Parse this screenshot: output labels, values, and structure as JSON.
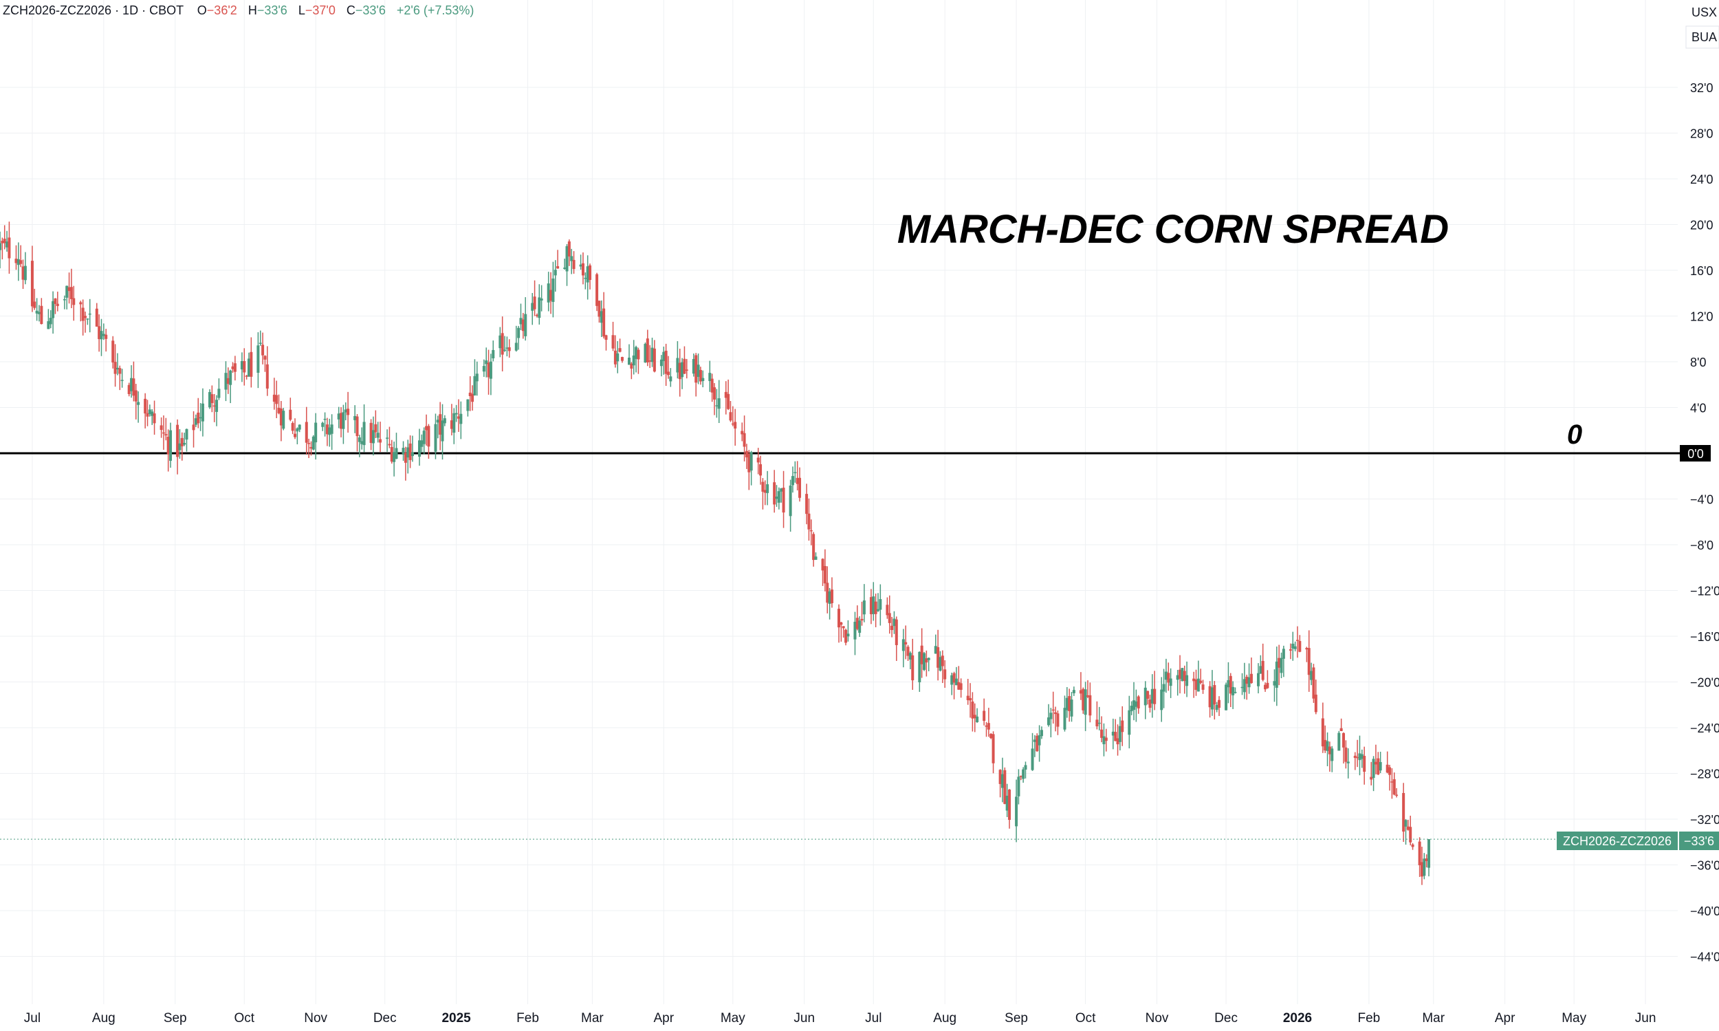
{
  "header": {
    "symbol": "ZCH2026-ZCZ2026 · 1D · CBOT",
    "open_label": "O",
    "open_value": "−36'2",
    "high_label": "H",
    "high_value": "−33'6",
    "low_label": "L",
    "low_value": "−37'0",
    "close_label": "C",
    "close_value": "−33'6",
    "change": "+2'6 (+7.53%)"
  },
  "scale": {
    "currency": "USX",
    "unit": "BUA"
  },
  "annotations": {
    "title": "MARCH-DEC CORN SPREAD",
    "zero_label": "0"
  },
  "price_tag": {
    "symbol": "ZCH2026-ZCZ2026",
    "value": "−33'6"
  },
  "zero_tag": "0'0",
  "colors": {
    "up": "#4a9a7f",
    "down": "#d9534f",
    "tag_bg": "#4a9a7f",
    "zero_line": "#000000"
  },
  "chart_data": {
    "type": "candlestick",
    "title": "MARCH-DEC CORN SPREAD",
    "x_range": [
      "2024-06-17",
      "2026-06-15"
    ],
    "ylim": [
      -46,
      35
    ],
    "y_ticks": [
      32,
      28,
      24,
      20,
      16,
      12,
      8,
      4,
      0,
      -4,
      -8,
      -12,
      -16,
      -20,
      -24,
      -28,
      -32,
      -36,
      -40,
      -44
    ],
    "y_tick_labels": [
      "32'0",
      "28'0",
      "24'0",
      "20'0",
      "16'0",
      "12'0",
      "8'0",
      "4'0",
      "0'0",
      "−4'0",
      "−8'0",
      "−12'0",
      "−16'0",
      "−20'0",
      "−24'0",
      "−28'0",
      "−32'0",
      "−36'0",
      "−40'0",
      "−44'0"
    ],
    "x_ticks": [
      {
        "date": "2024-07-01",
        "label": "Jul"
      },
      {
        "date": "2024-08-01",
        "label": "Aug"
      },
      {
        "date": "2024-09-01",
        "label": "Sep"
      },
      {
        "date": "2024-10-01",
        "label": "Oct"
      },
      {
        "date": "2024-11-01",
        "label": "Nov"
      },
      {
        "date": "2024-12-01",
        "label": "Dec"
      },
      {
        "date": "2025-01-01",
        "label": "2025",
        "bold": true
      },
      {
        "date": "2025-02-01",
        "label": "Feb"
      },
      {
        "date": "2025-03-01",
        "label": "Mar"
      },
      {
        "date": "2025-04-01",
        "label": "Apr"
      },
      {
        "date": "2025-05-01",
        "label": "May"
      },
      {
        "date": "2025-06-01",
        "label": "Jun"
      },
      {
        "date": "2025-07-01",
        "label": "Jul"
      },
      {
        "date": "2025-08-01",
        "label": "Aug"
      },
      {
        "date": "2025-09-01",
        "label": "Sep"
      },
      {
        "date": "2025-10-01",
        "label": "Oct"
      },
      {
        "date": "2025-11-01",
        "label": "Nov"
      },
      {
        "date": "2025-12-01",
        "label": "Dec"
      },
      {
        "date": "2026-01-01",
        "label": "2026",
        "bold": true
      },
      {
        "date": "2026-02-01",
        "label": "Feb"
      },
      {
        "date": "2026-03-01",
        "label": "Mar"
      },
      {
        "date": "2026-04-01",
        "label": "Apr"
      },
      {
        "date": "2026-05-01",
        "label": "May"
      },
      {
        "date": "2026-06-01",
        "label": "Jun"
      }
    ],
    "horizontal_line": 0,
    "last_price": -33.75,
    "close_path": [
      [
        "2024-06-17",
        18
      ],
      [
        "2024-06-25",
        17.5
      ],
      [
        "2024-07-01",
        13
      ],
      [
        "2024-07-05",
        11.5
      ],
      [
        "2024-07-12",
        13
      ],
      [
        "2024-07-18",
        14
      ],
      [
        "2024-07-25",
        12
      ],
      [
        "2024-08-01",
        10
      ],
      [
        "2024-08-08",
        7
      ],
      [
        "2024-08-15",
        5.5
      ],
      [
        "2024-08-22",
        3
      ],
      [
        "2024-08-29",
        1
      ],
      [
        "2024-09-04",
        0.2
      ],
      [
        "2024-09-10",
        3
      ],
      [
        "2024-09-17",
        5
      ],
      [
        "2024-09-24",
        6.5
      ],
      [
        "2024-10-01",
        7
      ],
      [
        "2024-10-08",
        8.5
      ],
      [
        "2024-10-15",
        4
      ],
      [
        "2024-10-22",
        2.5
      ],
      [
        "2024-10-29",
        1.5
      ],
      [
        "2024-11-05",
        2
      ],
      [
        "2024-11-12",
        3
      ],
      [
        "2024-11-19",
        2
      ],
      [
        "2024-11-26",
        1.5
      ],
      [
        "2024-12-03",
        0.5
      ],
      [
        "2024-12-10",
        0.2
      ],
      [
        "2024-12-17",
        1
      ],
      [
        "2024-12-24",
        2
      ],
      [
        "2024-12-31",
        3
      ],
      [
        "2025-01-07",
        5
      ],
      [
        "2025-01-14",
        7
      ],
      [
        "2025-01-21",
        9.5
      ],
      [
        "2025-01-28",
        10.5
      ],
      [
        "2025-02-04",
        12.5
      ],
      [
        "2025-02-11",
        14
      ],
      [
        "2025-02-18",
        18
      ],
      [
        "2025-02-24",
        16.5
      ],
      [
        "2025-03-03",
        14
      ],
      [
        "2025-03-07",
        10
      ],
      [
        "2025-03-14",
        8
      ],
      [
        "2025-03-21",
        9
      ],
      [
        "2025-03-28",
        8
      ],
      [
        "2025-04-04",
        7.5
      ],
      [
        "2025-04-11",
        7
      ],
      [
        "2025-04-18",
        7.5
      ],
      [
        "2025-04-25",
        5
      ],
      [
        "2025-05-02",
        2
      ],
      [
        "2025-05-09",
        -1
      ],
      [
        "2025-05-16",
        -3
      ],
      [
        "2025-05-23",
        -4
      ],
      [
        "2025-05-28",
        -2
      ],
      [
        "2025-06-02",
        -5
      ],
      [
        "2025-06-06",
        -10
      ],
      [
        "2025-06-13",
        -13
      ],
      [
        "2025-06-20",
        -16
      ],
      [
        "2025-06-27",
        -14
      ],
      [
        "2025-07-04",
        -13
      ],
      [
        "2025-07-11",
        -16
      ],
      [
        "2025-07-18",
        -19
      ],
      [
        "2025-07-25",
        -17
      ],
      [
        "2025-08-01",
        -19
      ],
      [
        "2025-08-08",
        -21
      ],
      [
        "2025-08-15",
        -23
      ],
      [
        "2025-08-22",
        -26
      ],
      [
        "2025-08-29",
        -31
      ],
      [
        "2025-09-05",
        -27
      ],
      [
        "2025-09-12",
        -25
      ],
      [
        "2025-09-19",
        -23
      ],
      [
        "2025-09-26",
        -21
      ],
      [
        "2025-10-03",
        -22
      ],
      [
        "2025-10-10",
        -26
      ],
      [
        "2025-10-17",
        -24
      ],
      [
        "2025-10-24",
        -22
      ],
      [
        "2025-10-31",
        -21
      ],
      [
        "2025-11-07",
        -20
      ],
      [
        "2025-11-14",
        -19
      ],
      [
        "2025-11-21",
        -21
      ],
      [
        "2025-11-28",
        -22
      ],
      [
        "2025-12-05",
        -20
      ],
      [
        "2025-12-12",
        -19
      ],
      [
        "2025-12-19",
        -20
      ],
      [
        "2025-12-26",
        -18
      ],
      [
        "2026-01-02",
        -17
      ],
      [
        "2026-01-07",
        -19
      ],
      [
        "2026-01-12",
        -26
      ],
      [
        "2026-01-19",
        -25
      ],
      [
        "2026-01-26",
        -27
      ],
      [
        "2026-02-02",
        -28
      ],
      [
        "2026-02-09",
        -27
      ],
      [
        "2026-02-13",
        -31
      ],
      [
        "2026-02-19",
        -34
      ],
      [
        "2026-02-24",
        -36.5
      ],
      [
        "2026-02-27",
        -33.75
      ]
    ]
  }
}
